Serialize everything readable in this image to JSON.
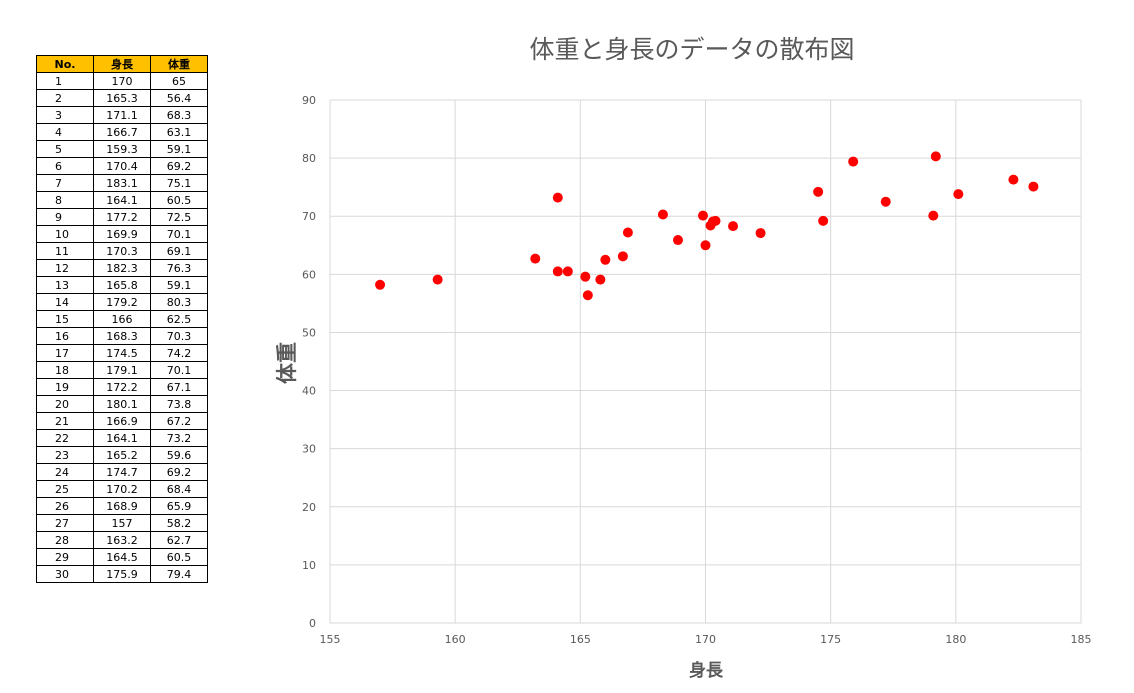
{
  "table": {
    "headers": [
      "No.",
      "身長",
      "体重"
    ],
    "rows": [
      [
        "1",
        "170",
        "65"
      ],
      [
        "2",
        "165.3",
        "56.4"
      ],
      [
        "3",
        "171.1",
        "68.3"
      ],
      [
        "4",
        "166.7",
        "63.1"
      ],
      [
        "5",
        "159.3",
        "59.1"
      ],
      [
        "6",
        "170.4",
        "69.2"
      ],
      [
        "7",
        "183.1",
        "75.1"
      ],
      [
        "8",
        "164.1",
        "60.5"
      ],
      [
        "9",
        "177.2",
        "72.5"
      ],
      [
        "10",
        "169.9",
        "70.1"
      ],
      [
        "11",
        "170.3",
        "69.1"
      ],
      [
        "12",
        "182.3",
        "76.3"
      ],
      [
        "13",
        "165.8",
        "59.1"
      ],
      [
        "14",
        "179.2",
        "80.3"
      ],
      [
        "15",
        "166",
        "62.5"
      ],
      [
        "16",
        "168.3",
        "70.3"
      ],
      [
        "17",
        "174.5",
        "74.2"
      ],
      [
        "18",
        "179.1",
        "70.1"
      ],
      [
        "19",
        "172.2",
        "67.1"
      ],
      [
        "20",
        "180.1",
        "73.8"
      ],
      [
        "21",
        "166.9",
        "67.2"
      ],
      [
        "22",
        "164.1",
        "73.2"
      ],
      [
        "23",
        "165.2",
        "59.6"
      ],
      [
        "24",
        "174.7",
        "69.2"
      ],
      [
        "25",
        "170.2",
        "68.4"
      ],
      [
        "26",
        "168.9",
        "65.9"
      ],
      [
        "27",
        "157",
        "58.2"
      ],
      [
        "28",
        "163.2",
        "62.7"
      ],
      [
        "29",
        "164.5",
        "60.5"
      ],
      [
        "30",
        "175.9",
        "79.4"
      ]
    ]
  },
  "chart_data": {
    "type": "scatter",
    "title": "体重と身長のデータの散布図",
    "xlabel": "身長",
    "ylabel": "体重",
    "xlim": [
      155,
      185
    ],
    "ylim": [
      0,
      90
    ],
    "xticks": [
      155,
      160,
      165,
      170,
      175,
      180,
      185
    ],
    "yticks": [
      0,
      10,
      20,
      30,
      40,
      50,
      60,
      70,
      80,
      90
    ],
    "grid": true,
    "marker_color": "#ff0000",
    "x": [
      170,
      165.3,
      171.1,
      166.7,
      159.3,
      170.4,
      183.1,
      164.1,
      177.2,
      169.9,
      170.3,
      182.3,
      165.8,
      179.2,
      166,
      168.3,
      174.5,
      179.1,
      172.2,
      180.1,
      166.9,
      164.1,
      165.2,
      174.7,
      170.2,
      168.9,
      157,
      163.2,
      164.5,
      175.9
    ],
    "y": [
      65,
      56.4,
      68.3,
      63.1,
      59.1,
      69.2,
      75.1,
      60.5,
      72.5,
      70.1,
      69.1,
      76.3,
      59.1,
      80.3,
      62.5,
      70.3,
      74.2,
      70.1,
      67.1,
      73.8,
      67.2,
      73.2,
      59.6,
      69.2,
      68.4,
      65.9,
      58.2,
      62.7,
      60.5,
      79.4
    ]
  }
}
